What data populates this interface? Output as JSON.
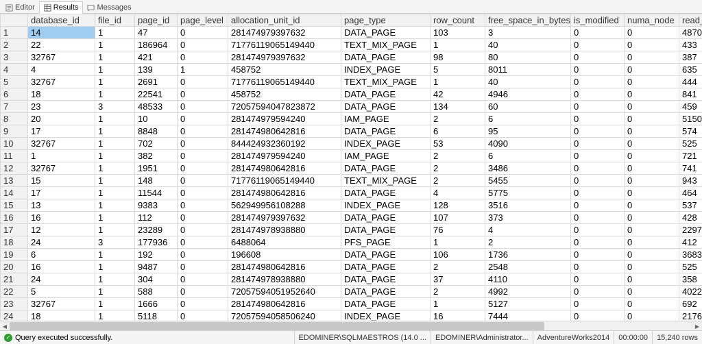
{
  "tabs": {
    "editor": "Editor",
    "results": "Results",
    "messages": "Messages"
  },
  "columns": [
    {
      "name": "",
      "width": 40
    },
    {
      "name": "database_id",
      "width": 98
    },
    {
      "name": "file_id",
      "width": 58
    },
    {
      "name": "page_id",
      "width": 62
    },
    {
      "name": "page_level",
      "width": 74
    },
    {
      "name": "allocation_unit_id",
      "width": 165
    },
    {
      "name": "page_type",
      "width": 130
    },
    {
      "name": "row_count",
      "width": 80
    },
    {
      "name": "free_space_in_bytes",
      "width": 125
    },
    {
      "name": "is_modified",
      "width": 78
    },
    {
      "name": "numa_node",
      "width": 80
    },
    {
      "name": "read_r",
      "width": 52
    }
  ],
  "rows": [
    [
      1,
      "14",
      "1",
      "47",
      "0",
      "281474979397632",
      "DATA_PAGE",
      "103",
      "3",
      "0",
      "0",
      "4870"
    ],
    [
      2,
      "22",
      "1",
      "186964",
      "0",
      "71776119065149440",
      "TEXT_MIX_PAGE",
      "1",
      "40",
      "0",
      "0",
      "433"
    ],
    [
      3,
      "32767",
      "1",
      "421",
      "0",
      "281474979397632",
      "DATA_PAGE",
      "98",
      "80",
      "0",
      "0",
      "387"
    ],
    [
      4,
      "4",
      "1",
      "139",
      "1",
      "458752",
      "INDEX_PAGE",
      "5",
      "8011",
      "0",
      "0",
      "635"
    ],
    [
      5,
      "32767",
      "1",
      "2691",
      "0",
      "71776119065149440",
      "TEXT_MIX_PAGE",
      "1",
      "40",
      "0",
      "0",
      "444"
    ],
    [
      6,
      "18",
      "1",
      "22541",
      "0",
      "458752",
      "DATA_PAGE",
      "42",
      "4946",
      "0",
      "0",
      "841"
    ],
    [
      7,
      "23",
      "3",
      "48533",
      "0",
      "72057594047823872",
      "DATA_PAGE",
      "134",
      "60",
      "0",
      "0",
      "459"
    ],
    [
      8,
      "20",
      "1",
      "10",
      "0",
      "281474979594240",
      "IAM_PAGE",
      "2",
      "6",
      "0",
      "0",
      "5150"
    ],
    [
      9,
      "17",
      "1",
      "8848",
      "0",
      "281474980642816",
      "DATA_PAGE",
      "6",
      "95",
      "0",
      "0",
      "574"
    ],
    [
      10,
      "32767",
      "1",
      "702",
      "0",
      "844424932360192",
      "INDEX_PAGE",
      "53",
      "4090",
      "0",
      "0",
      "525"
    ],
    [
      11,
      "1",
      "1",
      "382",
      "0",
      "281474979594240",
      "IAM_PAGE",
      "2",
      "6",
      "0",
      "0",
      "721"
    ],
    [
      12,
      "32767",
      "1",
      "1951",
      "0",
      "281474980642816",
      "DATA_PAGE",
      "2",
      "3486",
      "0",
      "0",
      "741"
    ],
    [
      13,
      "15",
      "1",
      "148",
      "0",
      "71776119065149440",
      "TEXT_MIX_PAGE",
      "2",
      "5455",
      "0",
      "0",
      "943"
    ],
    [
      14,
      "17",
      "1",
      "11544",
      "0",
      "281474980642816",
      "DATA_PAGE",
      "4",
      "5775",
      "0",
      "0",
      "464"
    ],
    [
      15,
      "13",
      "1",
      "9383",
      "0",
      "562949956108288",
      "INDEX_PAGE",
      "128",
      "3516",
      "0",
      "0",
      "537"
    ],
    [
      16,
      "16",
      "1",
      "112",
      "0",
      "281474979397632",
      "DATA_PAGE",
      "107",
      "373",
      "0",
      "0",
      "428"
    ],
    [
      17,
      "12",
      "1",
      "23289",
      "0",
      "281474978938880",
      "DATA_PAGE",
      "76",
      "4",
      "0",
      "0",
      "2297"
    ],
    [
      18,
      "24",
      "3",
      "177936",
      "0",
      "6488064",
      "PFS_PAGE",
      "1",
      "2",
      "0",
      "0",
      "412"
    ],
    [
      19,
      "6",
      "1",
      "192",
      "0",
      "196608",
      "DATA_PAGE",
      "106",
      "1736",
      "0",
      "0",
      "3683"
    ],
    [
      20,
      "16",
      "1",
      "9487",
      "0",
      "281474980642816",
      "DATA_PAGE",
      "2",
      "2548",
      "0",
      "0",
      "525"
    ],
    [
      21,
      "24",
      "1",
      "304",
      "0",
      "281474978938880",
      "DATA_PAGE",
      "37",
      "4110",
      "0",
      "0",
      "358"
    ],
    [
      22,
      "5",
      "1",
      "588",
      "0",
      "72057594051952640",
      "DATA_PAGE",
      "2",
      "4992",
      "0",
      "0",
      "4022"
    ],
    [
      23,
      "32767",
      "1",
      "1666",
      "0",
      "281474980642816",
      "DATA_PAGE",
      "1",
      "5127",
      "0",
      "0",
      "692"
    ],
    [
      24,
      "18",
      "1",
      "5118",
      "0",
      "72057594058506240",
      "INDEX_PAGE",
      "16",
      "7444",
      "0",
      "0",
      "2176"
    ]
  ],
  "selected_cell": {
    "row": 0,
    "col": 1
  },
  "status": {
    "message": "Query executed successfully.",
    "server": "EDOMINER\\SQLMAESTROS (14.0 ...",
    "login": "EDOMINER\\Administrator...",
    "db": "AdventureWorks2014",
    "elapsed": "00:00:00",
    "rowcount": "15,240 rows"
  },
  "colors": {
    "selected_bg": "#9fcdf2",
    "header_bg": "#f2f2f2",
    "grid_line": "#d8d8d8",
    "status_ok": "#2e9e2e"
  }
}
